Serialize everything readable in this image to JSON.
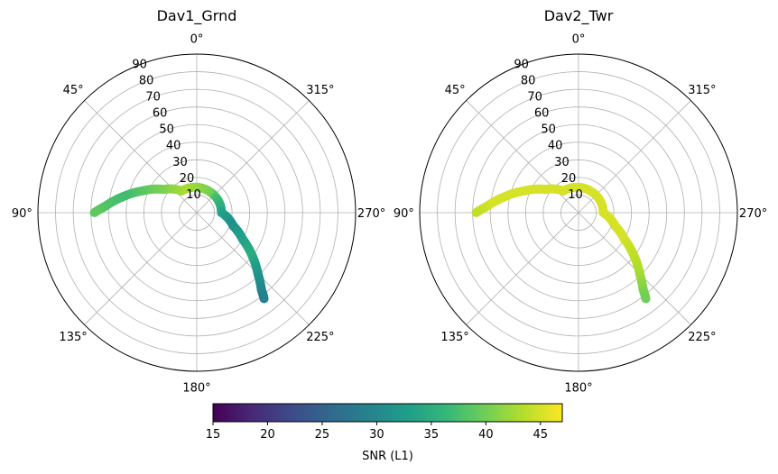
{
  "chart_data": [
    {
      "type": "scatter",
      "subtype": "polar-skyplot",
      "title": "Dav1_Grnd",
      "theta_direction": "clockwise",
      "theta_zero": "top",
      "theta_labels": [
        "0°",
        "45°",
        "90°",
        "135°",
        "180°",
        "225°",
        "270°",
        "315°"
      ],
      "r_labels": [
        "10",
        "20",
        "30",
        "40",
        "50",
        "60",
        "70",
        "80",
        "90"
      ],
      "rlim": [
        0,
        90
      ],
      "grid": true,
      "track": [
        {
          "azimuth": 330,
          "zenith": 14,
          "snr": 40
        },
        {
          "azimuth": 270,
          "zenith": 14,
          "snr": 34
        },
        {
          "azimuth": 250,
          "zenith": 22,
          "snr": 31
        },
        {
          "azimuth": 240,
          "zenith": 30,
          "snr": 33
        },
        {
          "azimuth": 232,
          "zenith": 40,
          "snr": 35
        },
        {
          "azimuth": 225,
          "zenith": 49,
          "snr": 32
        },
        {
          "azimuth": 220,
          "zenith": 57,
          "snr": 30
        },
        {
          "azimuth": 218,
          "zenith": 62,
          "snr": 29
        },
        {
          "azimuth": 35,
          "zenith": 15,
          "snr": 43
        },
        {
          "azimuth": 55,
          "zenith": 23,
          "snr": 41
        },
        {
          "azimuth": 68,
          "zenith": 33,
          "snr": 39
        },
        {
          "azimuth": 78,
          "zenith": 43,
          "snr": 37
        },
        {
          "azimuth": 86,
          "zenith": 52,
          "snr": 38
        },
        {
          "azimuth": 90,
          "zenith": 58,
          "snr": 39
        }
      ]
    },
    {
      "type": "scatter",
      "subtype": "polar-skyplot",
      "title": "Dav2_Twr",
      "theta_direction": "clockwise",
      "theta_zero": "top",
      "theta_labels": [
        "0°",
        "45°",
        "90°",
        "135°",
        "180°",
        "225°",
        "270°",
        "315°"
      ],
      "r_labels": [
        "10",
        "20",
        "30",
        "40",
        "50",
        "60",
        "70",
        "80",
        "90"
      ],
      "rlim": [
        0,
        90
      ],
      "grid": true,
      "track": [
        {
          "azimuth": 330,
          "zenith": 14,
          "snr": 45
        },
        {
          "azimuth": 270,
          "zenith": 14,
          "snr": 45
        },
        {
          "azimuth": 250,
          "zenith": 22,
          "snr": 45
        },
        {
          "azimuth": 240,
          "zenith": 30,
          "snr": 45
        },
        {
          "azimuth": 232,
          "zenith": 40,
          "snr": 44
        },
        {
          "azimuth": 225,
          "zenith": 49,
          "snr": 43
        },
        {
          "azimuth": 220,
          "zenith": 57,
          "snr": 41
        },
        {
          "azimuth": 218,
          "zenith": 62,
          "snr": 40
        },
        {
          "azimuth": 35,
          "zenith": 15,
          "snr": 45
        },
        {
          "azimuth": 55,
          "zenith": 23,
          "snr": 45
        },
        {
          "azimuth": 68,
          "zenith": 33,
          "snr": 45
        },
        {
          "azimuth": 78,
          "zenith": 43,
          "snr": 45
        },
        {
          "azimuth": 86,
          "zenith": 52,
          "snr": 45
        },
        {
          "azimuth": 90,
          "zenith": 58,
          "snr": 44
        }
      ]
    }
  ],
  "colorbar": {
    "label": "SNR (L1)",
    "colormap": "viridis",
    "range": [
      15,
      47
    ],
    "ticks": [
      "15",
      "20",
      "25",
      "30",
      "35",
      "40",
      "45"
    ],
    "orientation": "horizontal"
  }
}
